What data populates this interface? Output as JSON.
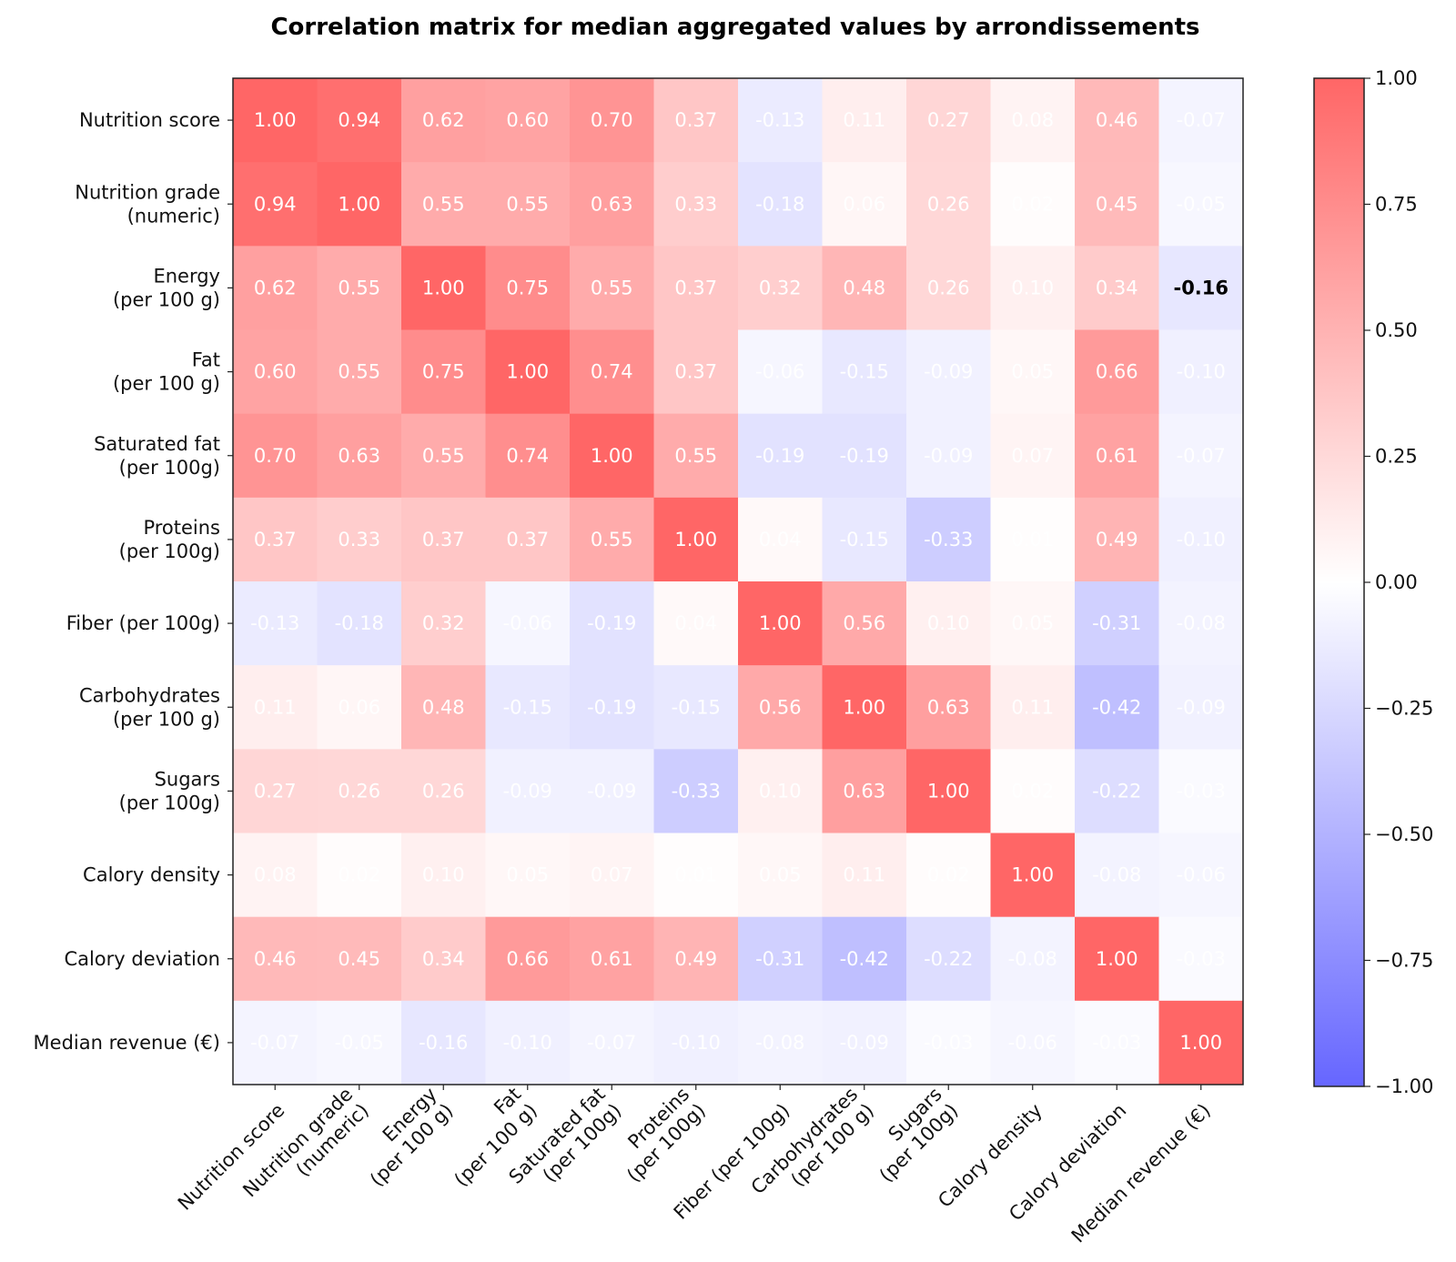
{
  "chart_data": {
    "type": "heatmap",
    "title": "Correlation matrix for median aggregated values by arrondissements",
    "labels": [
      "Nutrition score",
      "Nutrition grade\n(numeric)",
      "Energy\n(per 100 g)",
      "Fat\n(per 100 g)",
      "Saturated fat\n(per 100g)",
      "Proteins\n(per 100g)",
      "Fiber (per 100g)",
      "Carbohydrates\n(per 100 g)",
      "Sugars\n(per 100g)",
      "Calory density",
      "Calory deviation",
      "Median revenue (€)"
    ],
    "matrix": [
      [
        1.0,
        0.94,
        0.62,
        0.6,
        0.7,
        0.37,
        -0.13,
        0.11,
        0.27,
        0.08,
        0.46,
        -0.07
      ],
      [
        0.94,
        1.0,
        0.55,
        0.55,
        0.63,
        0.33,
        -0.18,
        0.06,
        0.26,
        0.02,
        0.45,
        -0.05
      ],
      [
        0.62,
        0.55,
        1.0,
        0.75,
        0.55,
        0.37,
        0.32,
        0.48,
        0.26,
        0.1,
        0.34,
        -0.16
      ],
      [
        0.6,
        0.55,
        0.75,
        1.0,
        0.74,
        0.37,
        -0.06,
        -0.15,
        -0.09,
        0.05,
        0.66,
        -0.1
      ],
      [
        0.7,
        0.63,
        0.55,
        0.74,
        1.0,
        0.55,
        -0.19,
        -0.19,
        -0.09,
        0.07,
        0.61,
        -0.07
      ],
      [
        0.37,
        0.33,
        0.37,
        0.37,
        0.55,
        1.0,
        0.04,
        -0.15,
        -0.33,
        0.01,
        0.49,
        -0.1
      ],
      [
        -0.13,
        -0.18,
        0.32,
        -0.06,
        -0.19,
        0.04,
        1.0,
        0.56,
        0.1,
        0.05,
        -0.31,
        -0.08
      ],
      [
        0.11,
        0.06,
        0.48,
        -0.15,
        -0.19,
        -0.15,
        0.56,
        1.0,
        0.63,
        0.11,
        -0.42,
        -0.09
      ],
      [
        0.27,
        0.26,
        0.26,
        -0.09,
        -0.09,
        -0.33,
        0.1,
        0.63,
        1.0,
        0.02,
        -0.22,
        -0.03
      ],
      [
        0.08,
        0.02,
        0.1,
        0.05,
        0.07,
        0.01,
        0.05,
        0.11,
        0.02,
        1.0,
        -0.08,
        -0.06
      ],
      [
        0.46,
        0.45,
        0.34,
        0.66,
        0.61,
        0.49,
        -0.31,
        -0.42,
        -0.22,
        -0.08,
        1.0,
        -0.03
      ],
      [
        -0.07,
        -0.05,
        -0.16,
        -0.1,
        -0.07,
        -0.1,
        -0.08,
        -0.09,
        -0.03,
        -0.06,
        -0.03,
        1.0
      ]
    ],
    "highlighted_cell": {
      "row": 2,
      "col": 11
    },
    "vlim": [
      -1.0,
      1.0
    ],
    "colormap": {
      "negative": "#0000ff",
      "zero": "#ffffff",
      "positive": "#ff0000",
      "alpha": 0.6
    },
    "colorbar_ticks": [
      "1.00",
      "0.75",
      "0.50",
      "0.25",
      "0.00",
      "−0.25",
      "−0.50",
      "−0.75",
      "−1.00"
    ],
    "colorbar_tick_values": [
      1.0,
      0.75,
      0.5,
      0.25,
      0.0,
      -0.25,
      -0.5,
      -0.75,
      -1.0
    ],
    "legend_position": "right",
    "grid": false
  }
}
